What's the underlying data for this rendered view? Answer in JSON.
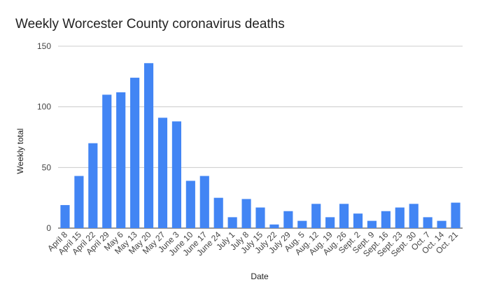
{
  "chart_data": {
    "type": "bar",
    "title": "Weekly Worcester County coronavirus deaths",
    "x_label": "Date",
    "y_label": "Weekly total",
    "categories": [
      "April 8",
      "April 15",
      "April 22",
      "April 29",
      "May 6",
      "May 13",
      "May 20",
      "May 27",
      "June 3",
      "June 10",
      "June 17",
      "June 24",
      "July 1",
      "July 8",
      "July 15",
      "July 22",
      "July 29",
      "Aug. 5",
      "Aug. 12",
      "Aug. 19",
      "Aug. 26",
      "Sept. 2",
      "Sept. 9",
      "Sept. 16",
      "Sept. 23",
      "Sept. 30",
      "Oct. 7",
      "Oct. 14",
      "Oct. 21"
    ],
    "values": [
      19,
      43,
      70,
      110,
      112,
      124,
      136,
      91,
      88,
      39,
      43,
      25,
      9,
      24,
      17,
      3,
      14,
      6,
      20,
      9,
      20,
      12,
      6,
      14,
      17,
      20,
      9,
      6,
      21
    ],
    "color": "#4285f4",
    "ylim": [
      0,
      150
    ],
    "yticks": [
      0,
      50,
      100,
      150
    ],
    "grid": true
  }
}
